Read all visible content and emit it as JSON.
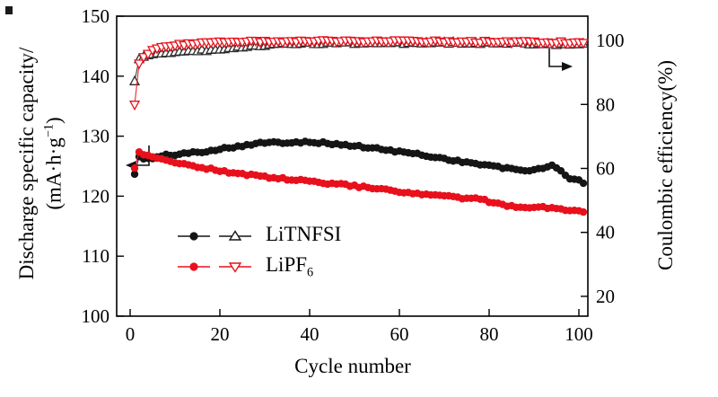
{
  "page": {
    "background": "#ffffff"
  },
  "chart_data": {
    "type": "line",
    "title": "",
    "xlabel": "Cycle number",
    "ylabel_left": {
      "line1": "Discharge specific capacity/",
      "line2_prefix": "(mA·h·g",
      "line2_sup": "−1",
      "line2_suffix": ")"
    },
    "ylabel_right": "Coulombic efficiency(%)",
    "xlim": [
      -3,
      102
    ],
    "xticks": [
      0,
      20,
      40,
      60,
      80,
      100
    ],
    "ylim_left": [
      100,
      150
    ],
    "yticks_left": [
      100,
      110,
      120,
      130,
      140,
      150
    ],
    "ylim_right": [
      13.8,
      107.6
    ],
    "yticks_right": [
      20,
      40,
      60,
      80,
      100
    ],
    "cycles": 101,
    "grid": false,
    "legend_position": "lower-left",
    "colors": {
      "black": "#151515",
      "red": "#e8101c"
    },
    "series": [
      {
        "name": "LiTNFSI-efficiency",
        "axis": "right",
        "color": "#2b2b2b",
        "marker": "triangle-up",
        "marker_size": 5.2,
        "noise": 0.3,
        "seed": 303,
        "anchors": [
          [
            1,
            87.0
          ],
          [
            2,
            94.0
          ],
          [
            3,
            95.0
          ],
          [
            5,
            95.8
          ],
          [
            8,
            96.2
          ],
          [
            12,
            96.6
          ],
          [
            16,
            96.9
          ],
          [
            20,
            97.2
          ],
          [
            24,
            97.8
          ],
          [
            28,
            98.4
          ],
          [
            32,
            98.8
          ],
          [
            36,
            99.0
          ],
          [
            40,
            99.1
          ],
          [
            48,
            99.2
          ],
          [
            56,
            99.1
          ],
          [
            64,
            99.2
          ],
          [
            72,
            99.3
          ],
          [
            80,
            99.2
          ],
          [
            88,
            99.1
          ],
          [
            93,
            98.8
          ],
          [
            97,
            99.0
          ],
          [
            101,
            99.0
          ]
        ]
      },
      {
        "name": "LiPF6-efficiency",
        "axis": "right",
        "color": "#e8101c",
        "marker": "triangle-down",
        "marker_size": 5.2,
        "noise": 0.3,
        "seed": 404,
        "anchors": [
          [
            1,
            80.0
          ],
          [
            2,
            92.5
          ],
          [
            3,
            95.0
          ],
          [
            5,
            97.0
          ],
          [
            8,
            98.2
          ],
          [
            12,
            98.8
          ],
          [
            16,
            99.2
          ],
          [
            20,
            99.5
          ],
          [
            28,
            99.7
          ],
          [
            36,
            99.6
          ],
          [
            44,
            99.8
          ],
          [
            52,
            99.7
          ],
          [
            60,
            99.8
          ],
          [
            68,
            99.7
          ],
          [
            76,
            99.6
          ],
          [
            84,
            99.5
          ],
          [
            92,
            99.5
          ],
          [
            101,
            99.3
          ]
        ]
      },
      {
        "name": "LiTNFSI-capacity",
        "axis": "left",
        "color": "#151515",
        "marker": "circle",
        "marker_size": 4.2,
        "noise": 0.18,
        "seed": 101,
        "anchors": [
          [
            1,
            123.8
          ],
          [
            2,
            126.5
          ],
          [
            3,
            126.2
          ],
          [
            5,
            126.3
          ],
          [
            8,
            126.8
          ],
          [
            12,
            127.1
          ],
          [
            16,
            127.4
          ],
          [
            20,
            127.9
          ],
          [
            24,
            128.3
          ],
          [
            28,
            128.8
          ],
          [
            32,
            128.9
          ],
          [
            36,
            129.0
          ],
          [
            40,
            129.1
          ],
          [
            44,
            128.8
          ],
          [
            48,
            128.5
          ],
          [
            52,
            128.2
          ],
          [
            56,
            127.8
          ],
          [
            60,
            127.4
          ],
          [
            64,
            127.0
          ],
          [
            68,
            126.5
          ],
          [
            72,
            126.0
          ],
          [
            76,
            125.5
          ],
          [
            80,
            125.1
          ],
          [
            84,
            124.6
          ],
          [
            88,
            124.2
          ],
          [
            91,
            124.6
          ],
          [
            94,
            125.0
          ],
          [
            96,
            124.2
          ],
          [
            98,
            123.0
          ],
          [
            101,
            122.3
          ]
        ]
      },
      {
        "name": "LiPF6-capacity",
        "axis": "left",
        "color": "#e8101c",
        "marker": "circle",
        "marker_size": 4.2,
        "noise": 0.18,
        "seed": 202,
        "anchors": [
          [
            1,
            124.8
          ],
          [
            2,
            127.2
          ],
          [
            4,
            126.8
          ],
          [
            6,
            126.4
          ],
          [
            10,
            125.7
          ],
          [
            14,
            125.0
          ],
          [
            18,
            124.5
          ],
          [
            22,
            124.0
          ],
          [
            26,
            123.6
          ],
          [
            30,
            123.2
          ],
          [
            34,
            122.9
          ],
          [
            38,
            122.6
          ],
          [
            42,
            122.3
          ],
          [
            46,
            122.0
          ],
          [
            50,
            121.7
          ],
          [
            54,
            121.3
          ],
          [
            58,
            120.9
          ],
          [
            62,
            120.5
          ],
          [
            66,
            120.2
          ],
          [
            70,
            120.0
          ],
          [
            74,
            119.7
          ],
          [
            78,
            119.5
          ],
          [
            81,
            118.8
          ],
          [
            84,
            118.4
          ],
          [
            88,
            118.2
          ],
          [
            92,
            118.1
          ],
          [
            95,
            118.0
          ],
          [
            98,
            117.7
          ],
          [
            101,
            117.4
          ]
        ]
      }
    ],
    "legend": {
      "items": [
        {
          "label_main": "LiTNFSI",
          "label_sub": "",
          "color": "#151515",
          "markers": [
            "circle",
            "triangle-up"
          ]
        },
        {
          "label_main": "LiPF",
          "label_sub": "6",
          "color": "#e8101c",
          "markers": [
            "circle",
            "triangle-down"
          ]
        }
      ]
    }
  }
}
